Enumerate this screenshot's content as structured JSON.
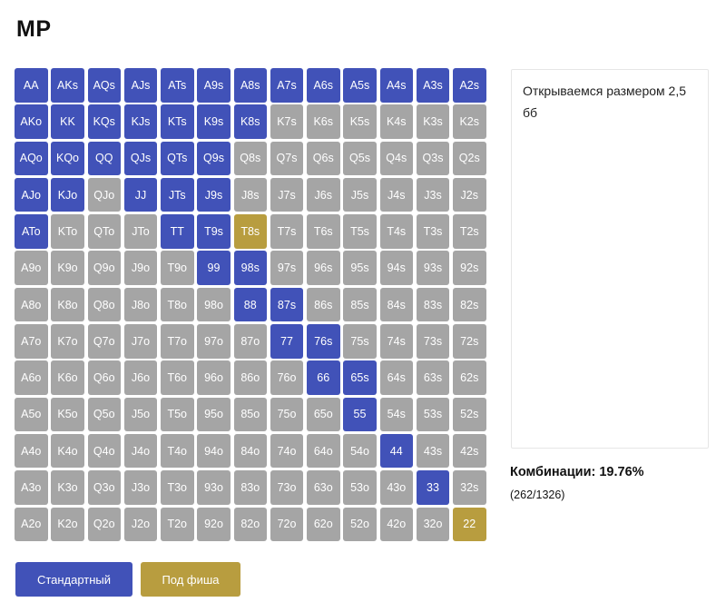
{
  "page": {
    "title": "MP"
  },
  "colors": {
    "open": "#4152b8",
    "call": "#b89d3f",
    "fold": "#a5a5a5"
  },
  "grid": {
    "rows": [
      [
        "AA",
        "AKs",
        "AQs",
        "AJs",
        "ATs",
        "A9s",
        "A8s",
        "A7s",
        "A6s",
        "A5s",
        "A4s",
        "A3s",
        "A2s"
      ],
      [
        "AKo",
        "KK",
        "KQs",
        "KJs",
        "KTs",
        "K9s",
        "K8s",
        "K7s",
        "K6s",
        "K5s",
        "K4s",
        "K3s",
        "K2s"
      ],
      [
        "AQo",
        "KQo",
        "QQ",
        "QJs",
        "QTs",
        "Q9s",
        "Q8s",
        "Q7s",
        "Q6s",
        "Q5s",
        "Q4s",
        "Q3s",
        "Q2s"
      ],
      [
        "AJo",
        "KJo",
        "QJo",
        "JJ",
        "JTs",
        "J9s",
        "J8s",
        "J7s",
        "J6s",
        "J5s",
        "J4s",
        "J3s",
        "J2s"
      ],
      [
        "ATo",
        "KTo",
        "QTo",
        "JTo",
        "TT",
        "T9s",
        "T8s",
        "T7s",
        "T6s",
        "T5s",
        "T4s",
        "T3s",
        "T2s"
      ],
      [
        "A9o",
        "K9o",
        "Q9o",
        "J9o",
        "T9o",
        "99",
        "98s",
        "97s",
        "96s",
        "95s",
        "94s",
        "93s",
        "92s"
      ],
      [
        "A8o",
        "K8o",
        "Q8o",
        "J8o",
        "T8o",
        "98o",
        "88",
        "87s",
        "86s",
        "85s",
        "84s",
        "83s",
        "82s"
      ],
      [
        "A7o",
        "K7o",
        "Q7o",
        "J7o",
        "T7o",
        "97o",
        "87o",
        "77",
        "76s",
        "75s",
        "74s",
        "73s",
        "72s"
      ],
      [
        "A6o",
        "K6o",
        "Q6o",
        "J6o",
        "T6o",
        "96o",
        "86o",
        "76o",
        "66",
        "65s",
        "64s",
        "63s",
        "62s"
      ],
      [
        "A5o",
        "K5o",
        "Q5o",
        "J5o",
        "T5o",
        "95o",
        "85o",
        "75o",
        "65o",
        "55",
        "54s",
        "53s",
        "52s"
      ],
      [
        "A4o",
        "K4o",
        "Q4o",
        "J4o",
        "T4o",
        "94o",
        "84o",
        "74o",
        "64o",
        "54o",
        "44",
        "43s",
        "42s"
      ],
      [
        "A3o",
        "K3o",
        "Q3o",
        "J3o",
        "T3o",
        "93o",
        "83o",
        "73o",
        "63o",
        "53o",
        "43o",
        "33",
        "32s"
      ],
      [
        "A2o",
        "K2o",
        "Q2o",
        "J2o",
        "T2o",
        "92o",
        "82o",
        "72o",
        "62o",
        "52o",
        "42o",
        "32o",
        "22"
      ]
    ],
    "states": [
      [
        "open",
        "open",
        "open",
        "open",
        "open",
        "open",
        "open",
        "open",
        "open",
        "open",
        "open",
        "open",
        "open"
      ],
      [
        "open",
        "open",
        "open",
        "open",
        "open",
        "open",
        "open",
        "fold",
        "fold",
        "fold",
        "fold",
        "fold",
        "fold"
      ],
      [
        "open",
        "open",
        "open",
        "open",
        "open",
        "open",
        "fold",
        "fold",
        "fold",
        "fold",
        "fold",
        "fold",
        "fold"
      ],
      [
        "open",
        "open",
        "fold",
        "open",
        "open",
        "open",
        "fold",
        "fold",
        "fold",
        "fold",
        "fold",
        "fold",
        "fold"
      ],
      [
        "open",
        "fold",
        "fold",
        "fold",
        "open",
        "open",
        "call",
        "fold",
        "fold",
        "fold",
        "fold",
        "fold",
        "fold"
      ],
      [
        "fold",
        "fold",
        "fold",
        "fold",
        "fold",
        "open",
        "open",
        "fold",
        "fold",
        "fold",
        "fold",
        "fold",
        "fold"
      ],
      [
        "fold",
        "fold",
        "fold",
        "fold",
        "fold",
        "fold",
        "open",
        "open",
        "fold",
        "fold",
        "fold",
        "fold",
        "fold"
      ],
      [
        "fold",
        "fold",
        "fold",
        "fold",
        "fold",
        "fold",
        "fold",
        "open",
        "open",
        "fold",
        "fold",
        "fold",
        "fold"
      ],
      [
        "fold",
        "fold",
        "fold",
        "fold",
        "fold",
        "fold",
        "fold",
        "fold",
        "open",
        "open",
        "fold",
        "fold",
        "fold"
      ],
      [
        "fold",
        "fold",
        "fold",
        "fold",
        "fold",
        "fold",
        "fold",
        "fold",
        "fold",
        "open",
        "fold",
        "fold",
        "fold"
      ],
      [
        "fold",
        "fold",
        "fold",
        "fold",
        "fold",
        "fold",
        "fold",
        "fold",
        "fold",
        "fold",
        "open",
        "fold",
        "fold"
      ],
      [
        "fold",
        "fold",
        "fold",
        "fold",
        "fold",
        "fold",
        "fold",
        "fold",
        "fold",
        "fold",
        "fold",
        "open",
        "fold"
      ],
      [
        "fold",
        "fold",
        "fold",
        "fold",
        "fold",
        "fold",
        "fold",
        "fold",
        "fold",
        "fold",
        "fold",
        "fold",
        "call"
      ]
    ]
  },
  "note": {
    "text": "Открываемся размером 2,5 бб"
  },
  "combinations": {
    "label": "Комбинации:",
    "percent": "19.76%",
    "count": "(262/1326)"
  },
  "buttons": {
    "standard": "Стандартный",
    "fish": "Под фиша"
  }
}
